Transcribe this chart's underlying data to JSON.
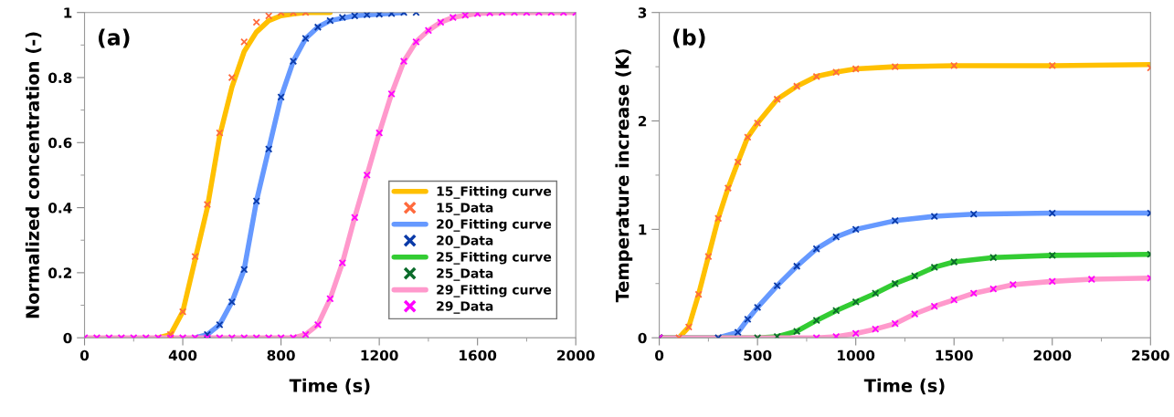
{
  "chart_data": [
    {
      "type": "line",
      "xlabel": "Time (s)",
      "ylabel": "Normalized concentration (-)",
      "annotations": [
        "(a)"
      ],
      "xlim": [
        0,
        2000
      ],
      "ylim": [
        0,
        1
      ],
      "xticks": [
        0,
        {
          "value": 200,
          "label": null
        },
        400,
        {
          "value": 600,
          "label": null
        },
        800,
        {
          "value": 1000,
          "label": null
        },
        1200,
        {
          "value": 1400,
          "label": null
        },
        1600,
        {
          "value": 1800,
          "label": null
        },
        2000
      ],
      "yticks": [
        0,
        {
          "value": 0.1,
          "label": null
        },
        0.2,
        {
          "value": 0.3,
          "label": null
        },
        0.4,
        {
          "value": 0.5,
          "label": null
        },
        0.6,
        {
          "value": 0.7,
          "label": null
        },
        0.8,
        {
          "value": 0.9,
          "label": null
        },
        1
      ],
      "grid": false,
      "legend": "lower right",
      "series": [
        {
          "name": "15_Fitting curve",
          "marker": "none",
          "color": "#ffc000",
          "x": [
            300,
            350,
            400,
            450,
            500,
            550,
            600,
            650,
            700,
            750,
            800,
            850,
            900,
            1000
          ],
          "values": [
            0,
            0.01,
            0.08,
            0.24,
            0.4,
            0.62,
            0.77,
            0.88,
            0.94,
            0.975,
            0.99,
            0.996,
            1,
            1
          ]
        },
        {
          "name": "15_Data",
          "type": "scatter",
          "marker": "cross",
          "color": "#ff6a3d",
          "x": [
            350,
            400,
            450,
            500,
            550,
            600,
            650,
            700,
            750,
            800,
            850,
            900
          ],
          "values": [
            0.01,
            0.08,
            0.25,
            0.41,
            0.63,
            0.8,
            0.91,
            0.97,
            0.99,
            1,
            1,
            1
          ]
        },
        {
          "name": "20_Fitting curve",
          "marker": "none",
          "color": "#6699ff",
          "x": [
            450,
            500,
            550,
            600,
            650,
            700,
            750,
            800,
            850,
            900,
            950,
            1000,
            1100,
            1200,
            1300
          ],
          "values": [
            0,
            0.01,
            0.04,
            0.11,
            0.21,
            0.42,
            0.58,
            0.74,
            0.85,
            0.92,
            0.955,
            0.975,
            0.99,
            0.995,
            1
          ]
        },
        {
          "name": "20_Data",
          "type": "scatter",
          "marker": "cross",
          "color": "#0a3aa8",
          "x": [
            500,
            550,
            600,
            650,
            700,
            750,
            800,
            850,
            900,
            950,
            1000,
            1050,
            1100,
            1150,
            1200,
            1250,
            1300,
            1350
          ],
          "values": [
            0.01,
            0.04,
            0.11,
            0.21,
            0.42,
            0.58,
            0.74,
            0.85,
            0.92,
            0.955,
            0.975,
            0.985,
            0.99,
            0.993,
            0.995,
            0.997,
            1,
            1
          ]
        },
        {
          "name": "25_Fitting curve",
          "marker": "none",
          "color": "#33cc33"
        },
        {
          "name": "25_Data",
          "type": "scatter",
          "marker": "cross",
          "color": "#0b6b2b"
        },
        {
          "name": "29_Fitting curve",
          "marker": "none",
          "color": "#ff99cc",
          "x": [
            0,
            400,
            800,
            850,
            900,
            950,
            1000,
            1050,
            1100,
            1150,
            1200,
            1250,
            1300,
            1350,
            1400,
            1450,
            1500,
            1600,
            1700,
            2000
          ],
          "values": [
            0,
            0,
            0,
            0,
            0.01,
            0.04,
            0.12,
            0.23,
            0.37,
            0.5,
            0.63,
            0.75,
            0.85,
            0.91,
            0.945,
            0.97,
            0.985,
            0.997,
            1,
            1
          ]
        },
        {
          "name": "29_Data",
          "type": "scatter",
          "marker": "cross",
          "color": "#ff00ff",
          "x": [
            0,
            50,
            100,
            150,
            200,
            250,
            300,
            350,
            400,
            450,
            500,
            550,
            600,
            650,
            700,
            750,
            800,
            850,
            900,
            950,
            1000,
            1050,
            1100,
            1150,
            1200,
            1250,
            1300,
            1350,
            1400,
            1450,
            1500,
            1550,
            1600,
            1650,
            1700,
            1750,
            1800,
            1850,
            1900,
            1950,
            2000
          ],
          "values": [
            0,
            0,
            0,
            0,
            0,
            0,
            0,
            0,
            0,
            0,
            0,
            0,
            0,
            0,
            0,
            0,
            0,
            0,
            0.01,
            0.04,
            0.12,
            0.23,
            0.37,
            0.5,
            0.63,
            0.75,
            0.85,
            0.91,
            0.945,
            0.97,
            0.985,
            0.992,
            0.997,
            0.999,
            1,
            1,
            1,
            1,
            1,
            1,
            1
          ]
        }
      ]
    },
    {
      "type": "line",
      "xlabel": "Time (s)",
      "ylabel": "Temperature increase (K)",
      "annotations": [
        "(b)"
      ],
      "xlim": [
        0,
        2500
      ],
      "ylim": [
        0,
        3
      ],
      "xticks": [
        0,
        {
          "value": 250,
          "label": null
        },
        500,
        {
          "value": 750,
          "label": null
        },
        1000,
        {
          "value": 1250,
          "label": null
        },
        1500,
        {
          "value": 1750,
          "label": null
        },
        2000,
        {
          "value": 2250,
          "label": null
        },
        2500
      ],
      "yticks": [
        0,
        {
          "value": 0.5,
          "label": null
        },
        1,
        {
          "value": 1.5,
          "label": null
        },
        2,
        {
          "value": 2.5,
          "label": null
        },
        3
      ],
      "grid": false,
      "legend": false,
      "series": [
        {
          "marker": "none",
          "color": "#ffc000",
          "x": [
            0,
            100,
            150,
            200,
            250,
            300,
            350,
            400,
            450,
            500,
            600,
            700,
            800,
            900,
            1000,
            1200,
            1500,
            2000,
            2500
          ],
          "values": [
            0,
            0,
            0.1,
            0.4,
            0.75,
            1.1,
            1.38,
            1.62,
            1.85,
            1.98,
            2.2,
            2.32,
            2.41,
            2.45,
            2.48,
            2.5,
            2.51,
            2.51,
            2.52
          ]
        },
        {
          "type": "scatter",
          "marker": "cross",
          "color": "#ff6a3d",
          "x": [
            0,
            100,
            150,
            200,
            250,
            300,
            350,
            400,
            450,
            500,
            600,
            700,
            800,
            900,
            1000,
            1200,
            1500,
            2000,
            2500
          ],
          "values": [
            0,
            0,
            0.1,
            0.4,
            0.75,
            1.1,
            1.38,
            1.62,
            1.85,
            1.98,
            2.2,
            2.32,
            2.41,
            2.45,
            2.48,
            2.5,
            2.51,
            2.51,
            2.49
          ]
        },
        {
          "marker": "none",
          "color": "#6699ff",
          "x": [
            0,
            300,
            400,
            450,
            500,
            600,
            700,
            800,
            900,
            1000,
            1200,
            1400,
            1600,
            2000,
            2500
          ],
          "values": [
            0,
            0,
            0.05,
            0.17,
            0.28,
            0.48,
            0.66,
            0.82,
            0.93,
            1.0,
            1.08,
            1.12,
            1.14,
            1.15,
            1.15
          ]
        },
        {
          "type": "scatter",
          "marker": "cross",
          "color": "#0a3aa8",
          "x": [
            0,
            300,
            400,
            450,
            500,
            600,
            700,
            800,
            900,
            1000,
            1200,
            1400,
            1600,
            2000,
            2500
          ],
          "values": [
            0,
            0,
            0.05,
            0.17,
            0.28,
            0.48,
            0.66,
            0.82,
            0.93,
            1.0,
            1.08,
            1.12,
            1.14,
            1.15,
            1.15
          ]
        },
        {
          "marker": "none",
          "color": "#33cc33",
          "x": [
            0,
            500,
            600,
            700,
            800,
            900,
            1000,
            1100,
            1200,
            1300,
            1400,
            1500,
            1700,
            2000,
            2500
          ],
          "values": [
            0,
            0,
            0.01,
            0.06,
            0.16,
            0.25,
            0.33,
            0.41,
            0.5,
            0.57,
            0.65,
            0.7,
            0.74,
            0.76,
            0.77
          ]
        },
        {
          "type": "scatter",
          "marker": "cross",
          "color": "#0b6b2b",
          "x": [
            0,
            500,
            600,
            700,
            800,
            900,
            1000,
            1100,
            1200,
            1300,
            1400,
            1500,
            1700,
            2000,
            2500
          ],
          "values": [
            0,
            0,
            0.01,
            0.06,
            0.16,
            0.25,
            0.33,
            0.41,
            0.5,
            0.57,
            0.65,
            0.7,
            0.74,
            0.76,
            0.77
          ]
        },
        {
          "marker": "none",
          "color": "#ff99cc",
          "x": [
            0,
            800,
            900,
            1000,
            1100,
            1200,
            1300,
            1400,
            1500,
            1600,
            1700,
            1800,
            2000,
            2200,
            2500
          ],
          "values": [
            0,
            0,
            0.01,
            0.04,
            0.08,
            0.13,
            0.22,
            0.29,
            0.35,
            0.41,
            0.45,
            0.49,
            0.52,
            0.54,
            0.55
          ]
        },
        {
          "type": "scatter",
          "marker": "cross",
          "color": "#ff00ff",
          "x": [
            0,
            800,
            900,
            1000,
            1100,
            1200,
            1300,
            1400,
            1500,
            1600,
            1700,
            1800,
            2000,
            2200,
            2500
          ],
          "values": [
            0,
            0,
            0.01,
            0.04,
            0.08,
            0.13,
            0.22,
            0.29,
            0.35,
            0.41,
            0.45,
            0.49,
            0.52,
            0.54,
            0.55
          ]
        }
      ]
    }
  ]
}
